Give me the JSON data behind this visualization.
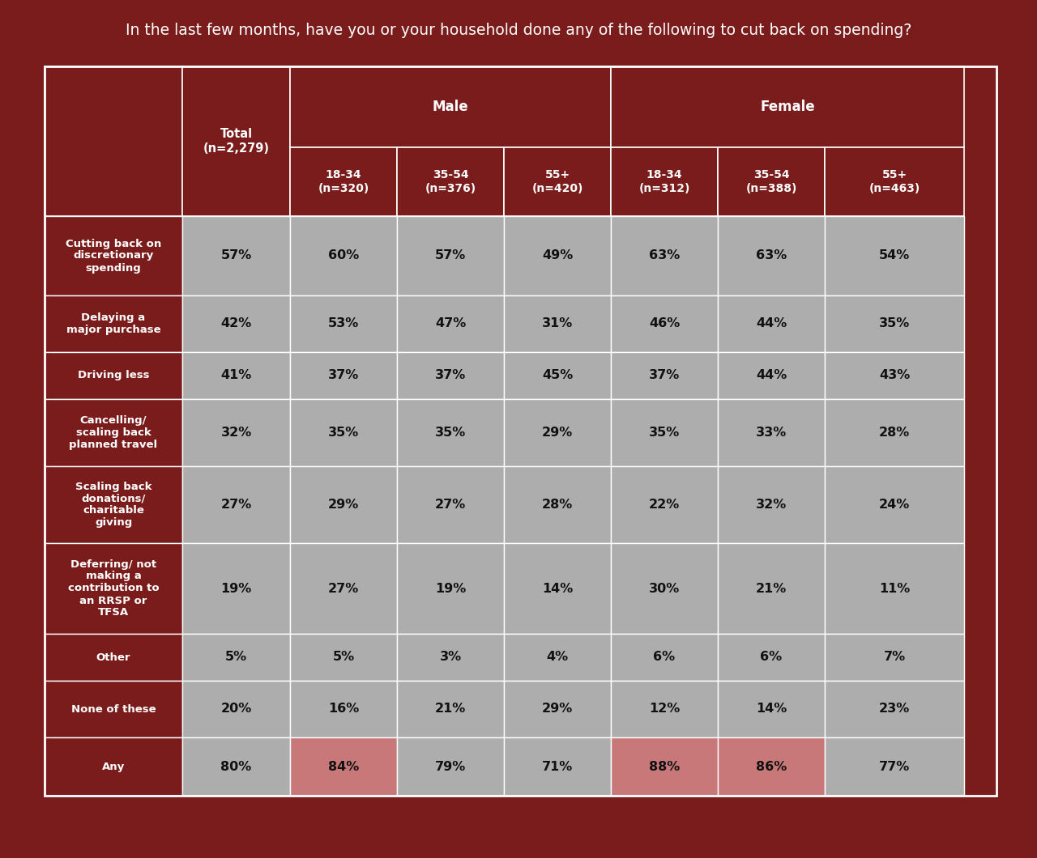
{
  "title": "In the last few months, have you or your household done any of the following to cut back on spending?",
  "title_bg": "#7B1C1C",
  "title_color": "#FFFFFF",
  "header_bg": "#7B1C1C",
  "header_color": "#FFFFFF",
  "row_label_bg": "#7B1C1C",
  "row_data_bg": "#ADADAD",
  "row_any_highlight": "#C87878",
  "data_text_color": "#111111",
  "col_headers": [
    "Total\n(n=2,279)",
    "18-34\n(n=320)",
    "35-54\n(n=376)",
    "55+\n(n=420)",
    "18-34\n(n=312)",
    "35-54\n(n=388)",
    "55+\n(n=463)"
  ],
  "rows": [
    {
      "label": "Cutting back on\ndiscretionary\nspending",
      "values": [
        "57%",
        "60%",
        "57%",
        "49%",
        "63%",
        "63%",
        "54%"
      ],
      "highlight": [
        false,
        false,
        false,
        false,
        false,
        false,
        false
      ],
      "is_any": false
    },
    {
      "label": "Delaying a\nmajor purchase",
      "values": [
        "42%",
        "53%",
        "47%",
        "31%",
        "46%",
        "44%",
        "35%"
      ],
      "highlight": [
        false,
        false,
        false,
        false,
        false,
        false,
        false
      ],
      "is_any": false
    },
    {
      "label": "Driving less",
      "values": [
        "41%",
        "37%",
        "37%",
        "45%",
        "37%",
        "44%",
        "43%"
      ],
      "highlight": [
        false,
        false,
        false,
        false,
        false,
        false,
        false
      ],
      "is_any": false
    },
    {
      "label": "Cancelling/\nscaling back\nplanned travel",
      "values": [
        "32%",
        "35%",
        "35%",
        "29%",
        "35%",
        "33%",
        "28%"
      ],
      "highlight": [
        false,
        false,
        false,
        false,
        false,
        false,
        false
      ],
      "is_any": false
    },
    {
      "label": "Scaling back\ndonations/\ncharitable\ngiving",
      "values": [
        "27%",
        "29%",
        "27%",
        "28%",
        "22%",
        "32%",
        "24%"
      ],
      "highlight": [
        false,
        false,
        false,
        false,
        false,
        false,
        false
      ],
      "is_any": false
    },
    {
      "label": "Deferring/ not\nmaking a\ncontribution to\nan RRSP or\nTFSA",
      "values": [
        "19%",
        "27%",
        "19%",
        "14%",
        "30%",
        "21%",
        "11%"
      ],
      "highlight": [
        false,
        false,
        false,
        false,
        false,
        false,
        false
      ],
      "is_any": false
    },
    {
      "label": "Other",
      "values": [
        "5%",
        "5%",
        "3%",
        "4%",
        "6%",
        "6%",
        "7%"
      ],
      "highlight": [
        false,
        false,
        false,
        false,
        false,
        false,
        false
      ],
      "is_any": false
    },
    {
      "label": "None of these",
      "values": [
        "20%",
        "16%",
        "21%",
        "29%",
        "12%",
        "14%",
        "23%"
      ],
      "highlight": [
        false,
        false,
        false,
        false,
        false,
        false,
        false
      ],
      "is_any": false
    },
    {
      "label": "Any",
      "values": [
        "80%",
        "84%",
        "79%",
        "71%",
        "88%",
        "86%",
        "77%"
      ],
      "highlight": [
        false,
        true,
        false,
        false,
        true,
        true,
        false
      ],
      "is_any": true
    }
  ]
}
